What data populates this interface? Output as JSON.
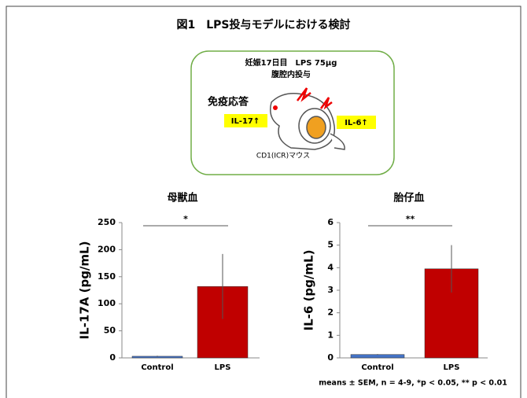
{
  "title": "図1　LPS投与モデルにおける検討",
  "diagram": {
    "line1": "妊娠17日目　LPS 75μg",
    "line2": "腹腔内投与",
    "response": "免疫応答",
    "il17": "IL-17↑",
    "il6": "IL-6↑",
    "mouse": "CD1(ICR)マウス"
  },
  "footnote": "means ± SEM, n = 4-9, *p < 0.05, ** p < 0.01",
  "chart_data": [
    {
      "type": "bar",
      "title": "母獣血",
      "ylabel": "IL-17A (pg/mL)",
      "categories": [
        "Control",
        "LPS"
      ],
      "values": [
        3,
        132
      ],
      "errors": [
        1,
        60
      ],
      "colors": [
        "#4472c4",
        "#c00000"
      ],
      "ylim": [
        0,
        250
      ],
      "yticks": [
        0,
        50,
        100,
        150,
        200,
        250
      ],
      "significance": "*"
    },
    {
      "type": "bar",
      "title": "胎仔血",
      "ylabel": "IL-6 (pg/mL)",
      "categories": [
        "Control",
        "LPS"
      ],
      "values": [
        0.15,
        3.95
      ],
      "errors": [
        0.02,
        1.05
      ],
      "colors": [
        "#4472c4",
        "#c00000"
      ],
      "ylim": [
        0,
        6
      ],
      "yticks": [
        0,
        1,
        2,
        3,
        4,
        5,
        6
      ],
      "significance": "**"
    }
  ]
}
